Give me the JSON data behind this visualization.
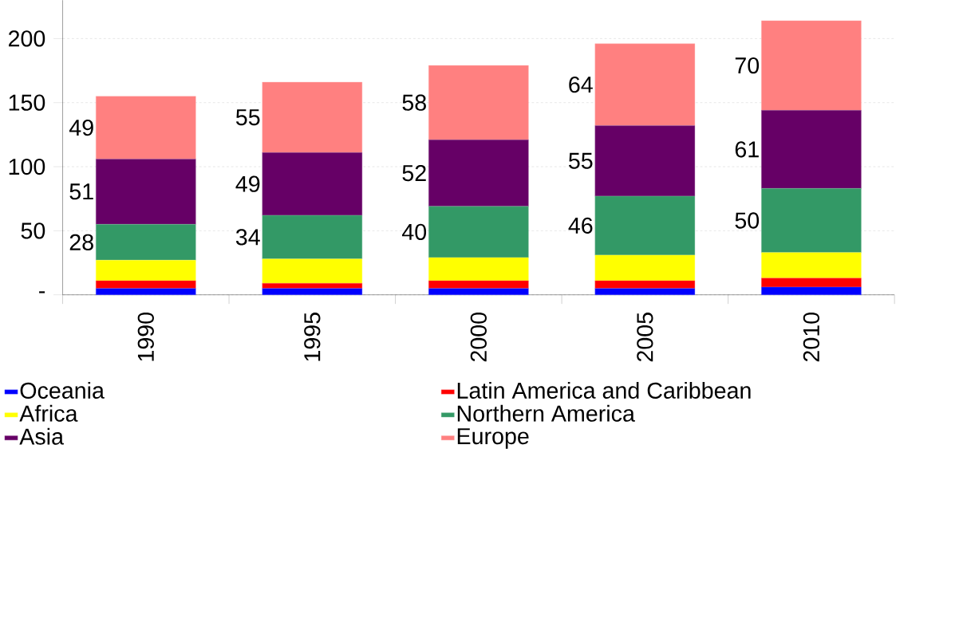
{
  "chart_data": {
    "type": "bar",
    "stacked": true,
    "categories": [
      "1990",
      "1995",
      "2000",
      "2005",
      "2010"
    ],
    "series": [
      {
        "name": "Oceania",
        "color": "#0000ff",
        "values": [
          5,
          5,
          5,
          5,
          6
        ]
      },
      {
        "name": "Latin America and Caribbean",
        "color": "#ff0000",
        "values": [
          6,
          4,
          6,
          6,
          7
        ]
      },
      {
        "name": "Africa",
        "color": "#ffff00",
        "values": [
          16,
          19,
          18,
          20,
          20
        ]
      },
      {
        "name": "Northern America",
        "color": "#339966",
        "values": [
          28,
          34,
          40,
          46,
          50
        ],
        "value_labels": [
          "28",
          "34",
          "40",
          "46",
          "50"
        ]
      },
      {
        "name": "Asia",
        "color": "#660066",
        "values": [
          51,
          49,
          52,
          55,
          61
        ],
        "value_labels": [
          "51",
          "49",
          "52",
          "55",
          "61"
        ]
      },
      {
        "name": "Europe",
        "color": "#ff8080",
        "values": [
          49,
          55,
          58,
          64,
          70
        ],
        "value_labels": [
          "49",
          "55",
          "58",
          "64",
          "70"
        ]
      }
    ],
    "ylim": [
      0,
      230
    ],
    "yticks": [
      {
        "value": 0,
        "label": "-"
      },
      50,
      100,
      150,
      200
    ],
    "grid": "y",
    "legend": "bottom"
  }
}
